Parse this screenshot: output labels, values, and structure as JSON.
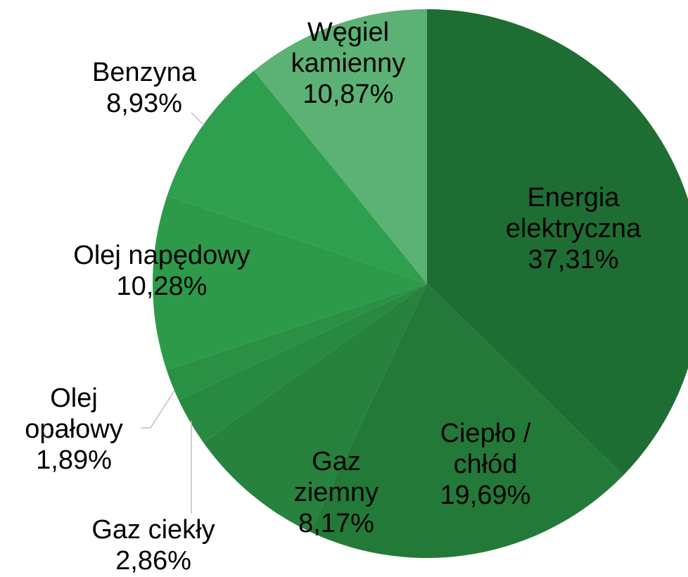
{
  "chart_data": {
    "type": "pie",
    "categories": [
      "Energia elektryczna",
      "Ciepło / chłód",
      "Gaz ziemny",
      "Gaz ciekły",
      "Olej opałowy",
      "Olej napędowy",
      "Benzyna",
      "Węgiel kamienny"
    ],
    "values": [
      37.31,
      19.69,
      8.17,
      2.86,
      1.89,
      10.28,
      8.93,
      10.87
    ],
    "value_labels": [
      "37,31%",
      "19,69%",
      "8,17%",
      "2,86%",
      "1,89%",
      "10,28%",
      "8,93%",
      "10,87%"
    ],
    "colors": [
      "#1e6e34",
      "#237a38",
      "#26823c",
      "#288a40",
      "#2a9044",
      "#2d9a4a",
      "#2e9f4e",
      "#5bb274"
    ]
  }
}
